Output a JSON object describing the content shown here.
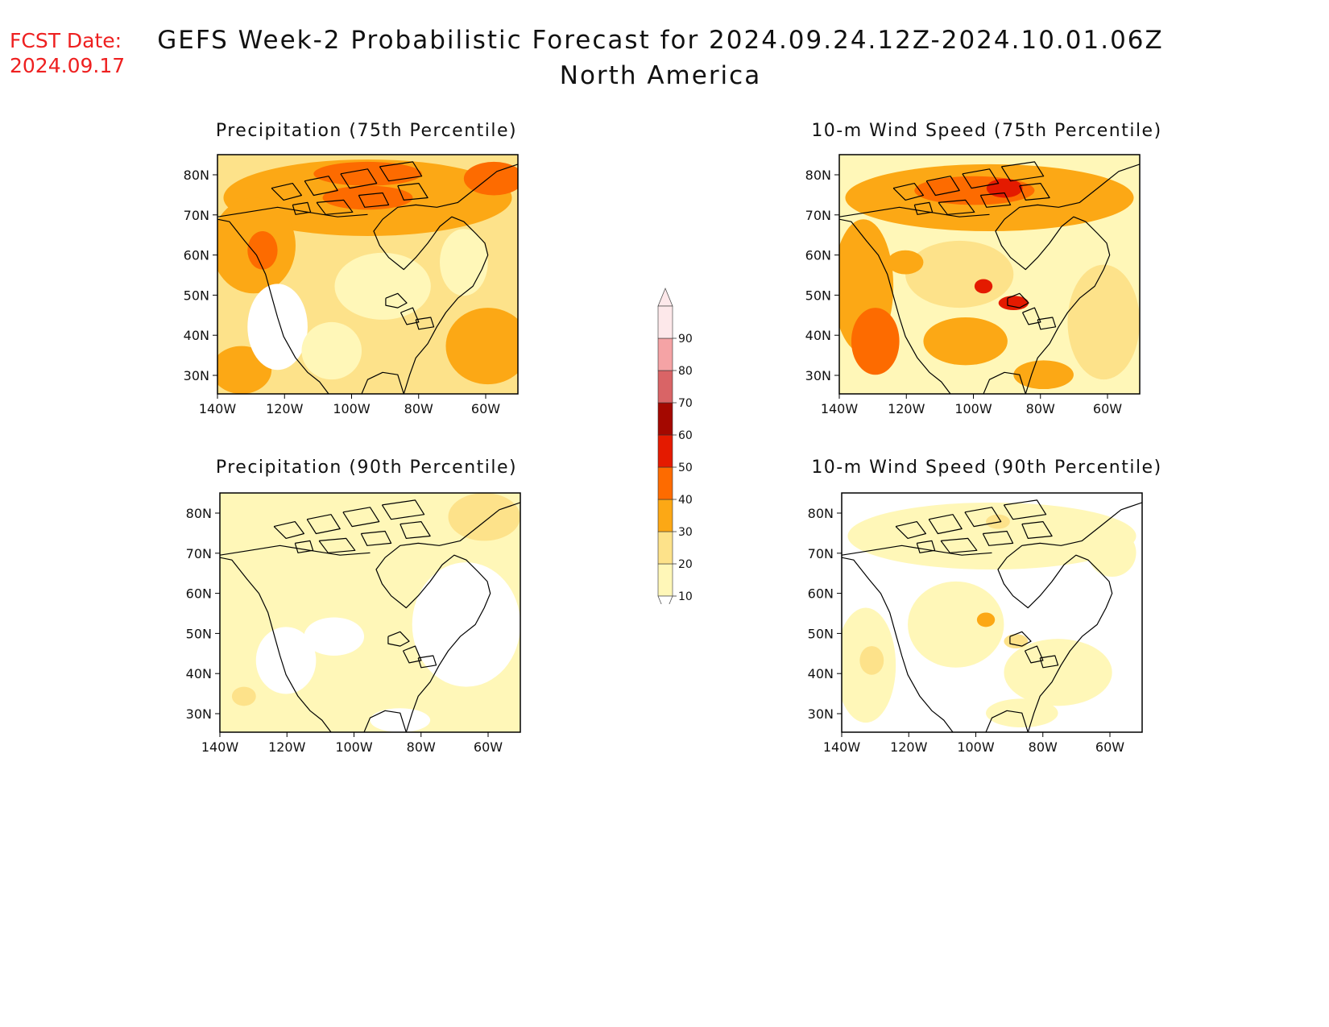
{
  "header": {
    "fcst_label": "FCST Date:",
    "fcst_date": "2024.09.17",
    "title": "GEFS Week-2 Probabilistic Forecast for 2024.09.24.12Z-2024.10.01.06Z",
    "subtitle": "North America"
  },
  "panels": [
    {
      "title": "Precipitation (75th Percentile)",
      "variant": "precip75"
    },
    {
      "title": "10-m Wind Speed (75th Percentile)",
      "variant": "wind75"
    },
    {
      "title": "Precipitation (90th Percentile)",
      "variant": "precip90"
    },
    {
      "title": "10-m Wind Speed (90th Percentile)",
      "variant": "wind90"
    }
  ],
  "axes": {
    "lat_labels": [
      "80N",
      "70N",
      "60N",
      "50N",
      "40N",
      "30N"
    ],
    "lon_labels": [
      "140W",
      "120W",
      "100W",
      "80W",
      "60W"
    ]
  },
  "colorbar": {
    "labels": [
      "10",
      "20",
      "30",
      "40",
      "50",
      "60",
      "70",
      "80",
      "90"
    ],
    "colors": [
      "#fff7b8",
      "#fde28a",
      "#fca815",
      "#fd6b00",
      "#e41a00",
      "#a40800",
      "#d96466",
      "#f5a3a5",
      "#fde8ea"
    ]
  }
}
